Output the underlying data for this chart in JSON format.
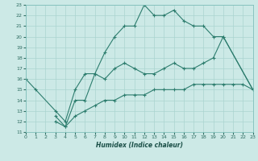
{
  "xlabel": "Humidex (Indice chaleur)",
  "bg_color": "#cce9e6",
  "line_color": "#2d7d6e",
  "grid_color": "#aad4d0",
  "xmin": 0,
  "xmax": 23,
  "ymin": 11,
  "ymax": 23,
  "curve1_x": [
    0,
    1,
    3,
    4,
    5,
    6,
    7,
    8,
    9,
    10,
    11,
    12,
    13,
    14,
    15,
    16,
    17,
    18,
    19,
    20,
    23
  ],
  "curve1_y": [
    16,
    15,
    13,
    12,
    15,
    16.5,
    16.5,
    18.5,
    20.0,
    21.0,
    21.0,
    23.0,
    22.0,
    22.0,
    22.5,
    21.5,
    21.0,
    21.0,
    20.0,
    20.0,
    15.0
  ],
  "curve2_x": [
    3,
    4,
    5,
    6,
    7,
    8,
    9,
    10,
    11,
    12,
    13,
    14,
    15,
    16,
    17,
    18,
    19,
    20,
    23
  ],
  "curve2_y": [
    12.5,
    11.5,
    14.0,
    14.0,
    16.5,
    16.0,
    17.0,
    17.5,
    17.0,
    16.5,
    16.5,
    17.0,
    17.5,
    17.0,
    17.0,
    17.5,
    18.0,
    20.0,
    15.0
  ],
  "curve3_x": [
    3,
    4,
    5,
    6,
    7,
    8,
    9,
    10,
    11,
    12,
    13,
    14,
    15,
    16,
    17,
    18,
    19,
    20,
    21,
    22,
    23
  ],
  "curve3_y": [
    12.0,
    11.5,
    12.5,
    13.0,
    13.5,
    14.0,
    14.0,
    14.5,
    14.5,
    14.5,
    15.0,
    15.0,
    15.0,
    15.0,
    15.5,
    15.5,
    15.5,
    15.5,
    15.5,
    15.5,
    15.0
  ]
}
